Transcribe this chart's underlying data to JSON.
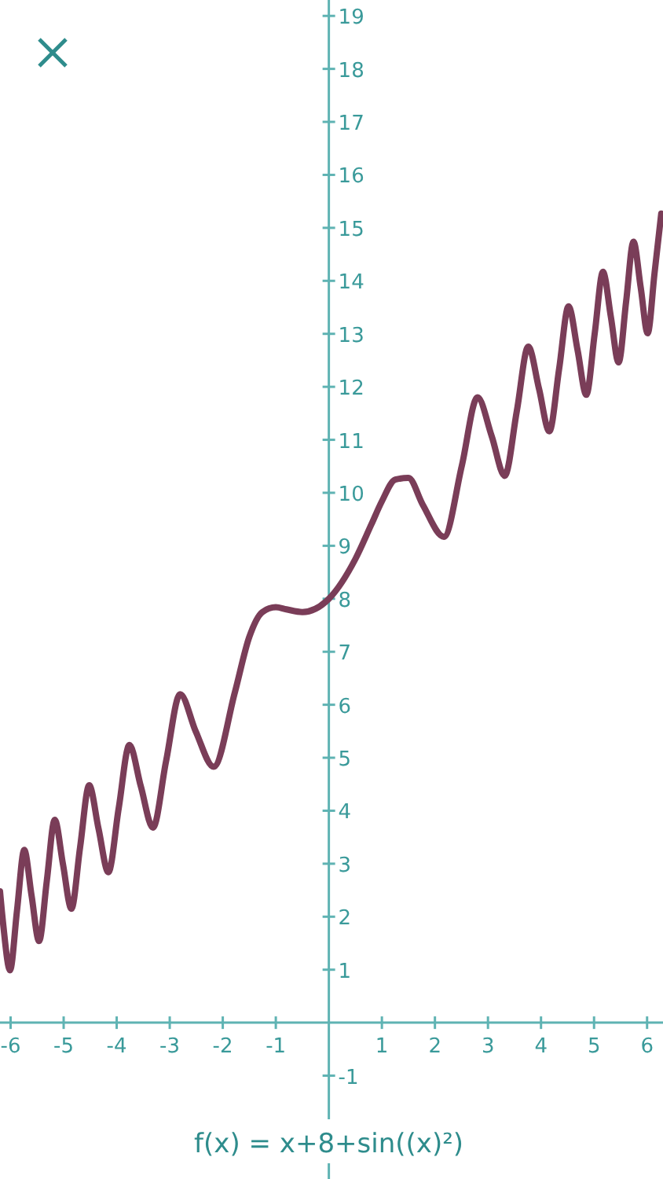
{
  "chart_data": {
    "type": "line",
    "xlabel": "f(x) = x+8+sin((x)²)",
    "xlim": [
      -6.2,
      6.3
    ],
    "ylim": [
      -2.95,
      19.3
    ],
    "xticks": [
      -6,
      -5,
      -4,
      -3,
      -2,
      -1,
      1,
      2,
      3,
      4,
      5,
      6
    ],
    "yticks": [
      -1,
      1,
      2,
      3,
      4,
      5,
      6,
      7,
      8,
      9,
      10,
      11,
      12,
      13,
      14,
      15,
      16,
      17,
      18,
      19
    ],
    "grid": false,
    "marker": "none",
    "line_style": "solid",
    "series": [
      {
        "color": "#7a3d58",
        "x": [
          -6.2,
          -6.14,
          -6.011,
          -5.879,
          -5.743,
          -5.605,
          -5.463,
          -5.317,
          -5.168,
          -5.013,
          -4.854,
          -4.69,
          -4.519,
          -4.342,
          -4.157,
          -3.963,
          -3.76,
          -3.545,
          -3.316,
          -3.07,
          -2.803,
          -2.507,
          -2.171,
          -1.773,
          -1.5,
          -1.253,
          -1.0,
          -0.8,
          -0.5,
          0,
          0.5,
          0.8,
          1.0,
          1.253,
          1.5,
          1.773,
          2.171,
          2.507,
          2.803,
          3.07,
          3.316,
          3.545,
          3.76,
          3.963,
          4.157,
          4.342,
          4.519,
          4.69,
          4.854,
          5.013,
          5.168,
          5.317,
          5.463,
          5.605,
          5.743,
          5.879,
          6.011,
          6.14,
          6.267
        ],
        "values": [
          2.48,
          1.86,
          0.99,
          2.12,
          3.26,
          2.4,
          1.54,
          2.68,
          3.83,
          2.99,
          2.15,
          3.31,
          4.48,
          3.66,
          2.84,
          4.04,
          5.24,
          4.46,
          3.68,
          4.93,
          6.2,
          5.49,
          4.83,
          6.23,
          7.28,
          7.75,
          7.84,
          7.8,
          7.75,
          8,
          8.75,
          9.4,
          9.84,
          10.25,
          10.28,
          9.77,
          9.17,
          10.51,
          11.8,
          11.07,
          10.32,
          11.55,
          12.76,
          11.96,
          11.16,
          12.34,
          13.52,
          12.69,
          11.85,
          13.01,
          14.17,
          13.32,
          12.46,
          13.61,
          14.74,
          13.88,
          13.01,
          14.14,
          15.27
        ]
      }
    ]
  }
}
